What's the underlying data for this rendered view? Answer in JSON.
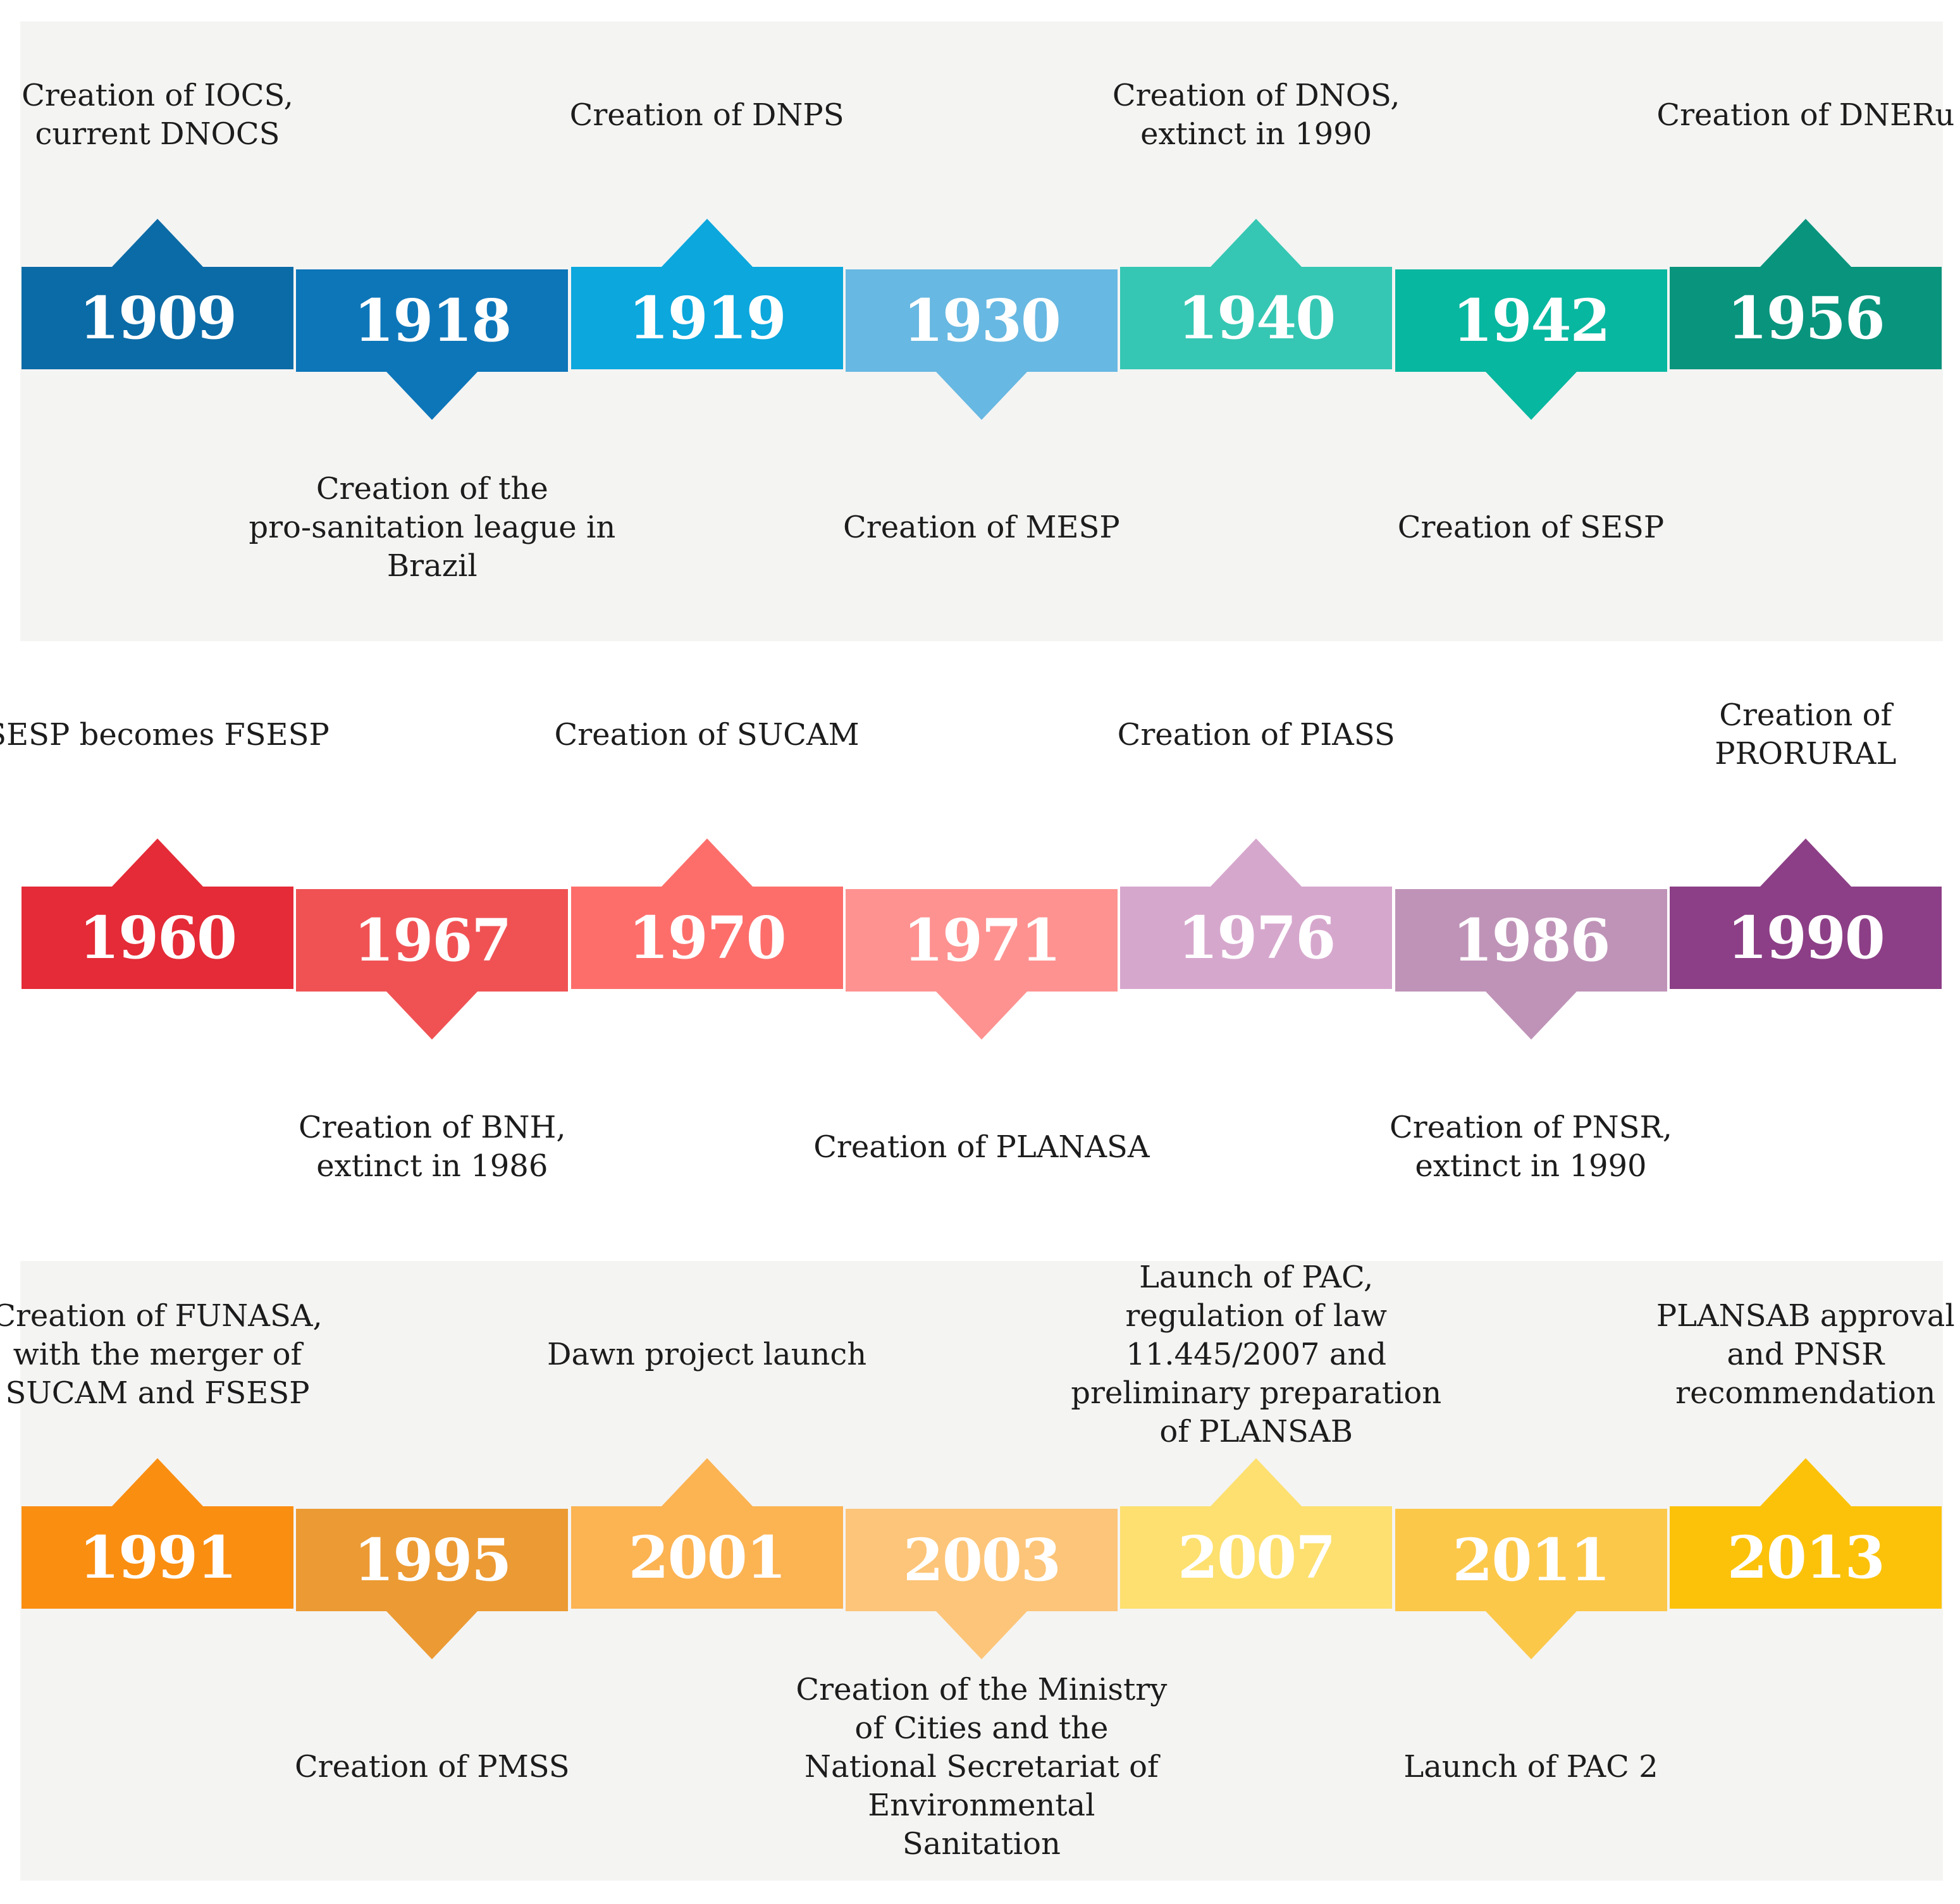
{
  "rows": [
    {
      "events": [
        {
          "year": "1909",
          "color": "#0b6ba6",
          "position": "top",
          "lines": [
            "Creation of IOCS,",
            "current DNOCS"
          ]
        },
        {
          "year": "1918",
          "color": "#0d76b9",
          "position": "bottom",
          "lines": [
            "Creation of the",
            "pro-sanitation league in",
            "Brazil"
          ]
        },
        {
          "year": "1919",
          "color": "#0ba7dd",
          "position": "top",
          "lines": [
            "Creation of  DNPS"
          ]
        },
        {
          "year": "1930",
          "color": "#67b8e2",
          "position": "bottom",
          "lines": [
            "Creation of  MESP"
          ]
        },
        {
          "year": "1940",
          "color": "#35c7b3",
          "position": "top",
          "lines": [
            "Creation of  DNOS,",
            "extinct in 1990"
          ]
        },
        {
          "year": "1942",
          "color": "#07b7a0",
          "position": "bottom",
          "lines": [
            "Creation of  SESP"
          ]
        },
        {
          "year": "1956",
          "color": "#09947d",
          "position": "top",
          "lines": [
            "Creation of  DNERu"
          ]
        }
      ]
    },
    {
      "events": [
        {
          "year": "1960",
          "color": "#e42b37",
          "position": "top",
          "lines": [
            "SESP becomes FSESP"
          ]
        },
        {
          "year": "1967",
          "color": "#f05254",
          "position": "bottom",
          "lines": [
            "Creation of  BNH,",
            "extinct in 1986"
          ]
        },
        {
          "year": "1970",
          "color": "#fd6e6b",
          "position": "top",
          "lines": [
            "Creation of  SUCAM"
          ]
        },
        {
          "year": "1971",
          "color": "#fe9290",
          "position": "bottom",
          "lines": [
            "Creation of  PLANASA"
          ]
        },
        {
          "year": "1976",
          "color": "#d6a7cd",
          "position": "top",
          "lines": [
            "Creation of  PIASS"
          ]
        },
        {
          "year": "1986",
          "color": "#bf93b8",
          "position": "bottom",
          "lines": [
            "Creation of  PNSR,",
            "extinct in 1990"
          ]
        },
        {
          "year": "1990",
          "color": "#8c3f86",
          "position": "top",
          "lines": [
            "Creation of",
            "PRORURAL"
          ]
        }
      ]
    },
    {
      "events": [
        {
          "year": "1991",
          "color": "#fa8e11",
          "position": "top",
          "lines": [
            "Creation of  FUNASA,",
            "with the merger of",
            "SUCAM and FSESP"
          ]
        },
        {
          "year": "1995",
          "color": "#ec9a33",
          "position": "bottom",
          "lines": [
            "Creation of  PMSS"
          ]
        },
        {
          "year": "2001",
          "color": "#fcb352",
          "position": "top",
          "lines": [
            "Dawn project launch"
          ]
        },
        {
          "year": "2003",
          "color": "#fdc579",
          "position": "bottom",
          "lines": [
            "Creation of the Ministry",
            "of Cities and the",
            "National Secretariat of",
            "Environmental",
            "Sanitation"
          ]
        },
        {
          "year": "2007",
          "color": "#fde06f",
          "position": "top",
          "lines": [
            "Launch of PAC,",
            "regulation of law",
            "11.445/2007 and",
            "preliminary preparation",
            "of  PLANSAB"
          ]
        },
        {
          "year": "2011",
          "color": "#fcc84a",
          "position": "bottom",
          "lines": [
            "Launch of PAC 2"
          ]
        },
        {
          "year": "2013",
          "color": "#fcc20a",
          "position": "top",
          "lines": [
            "PLANSAB approval",
            "and PNSR",
            "recommendation"
          ]
        }
      ]
    }
  ]
}
